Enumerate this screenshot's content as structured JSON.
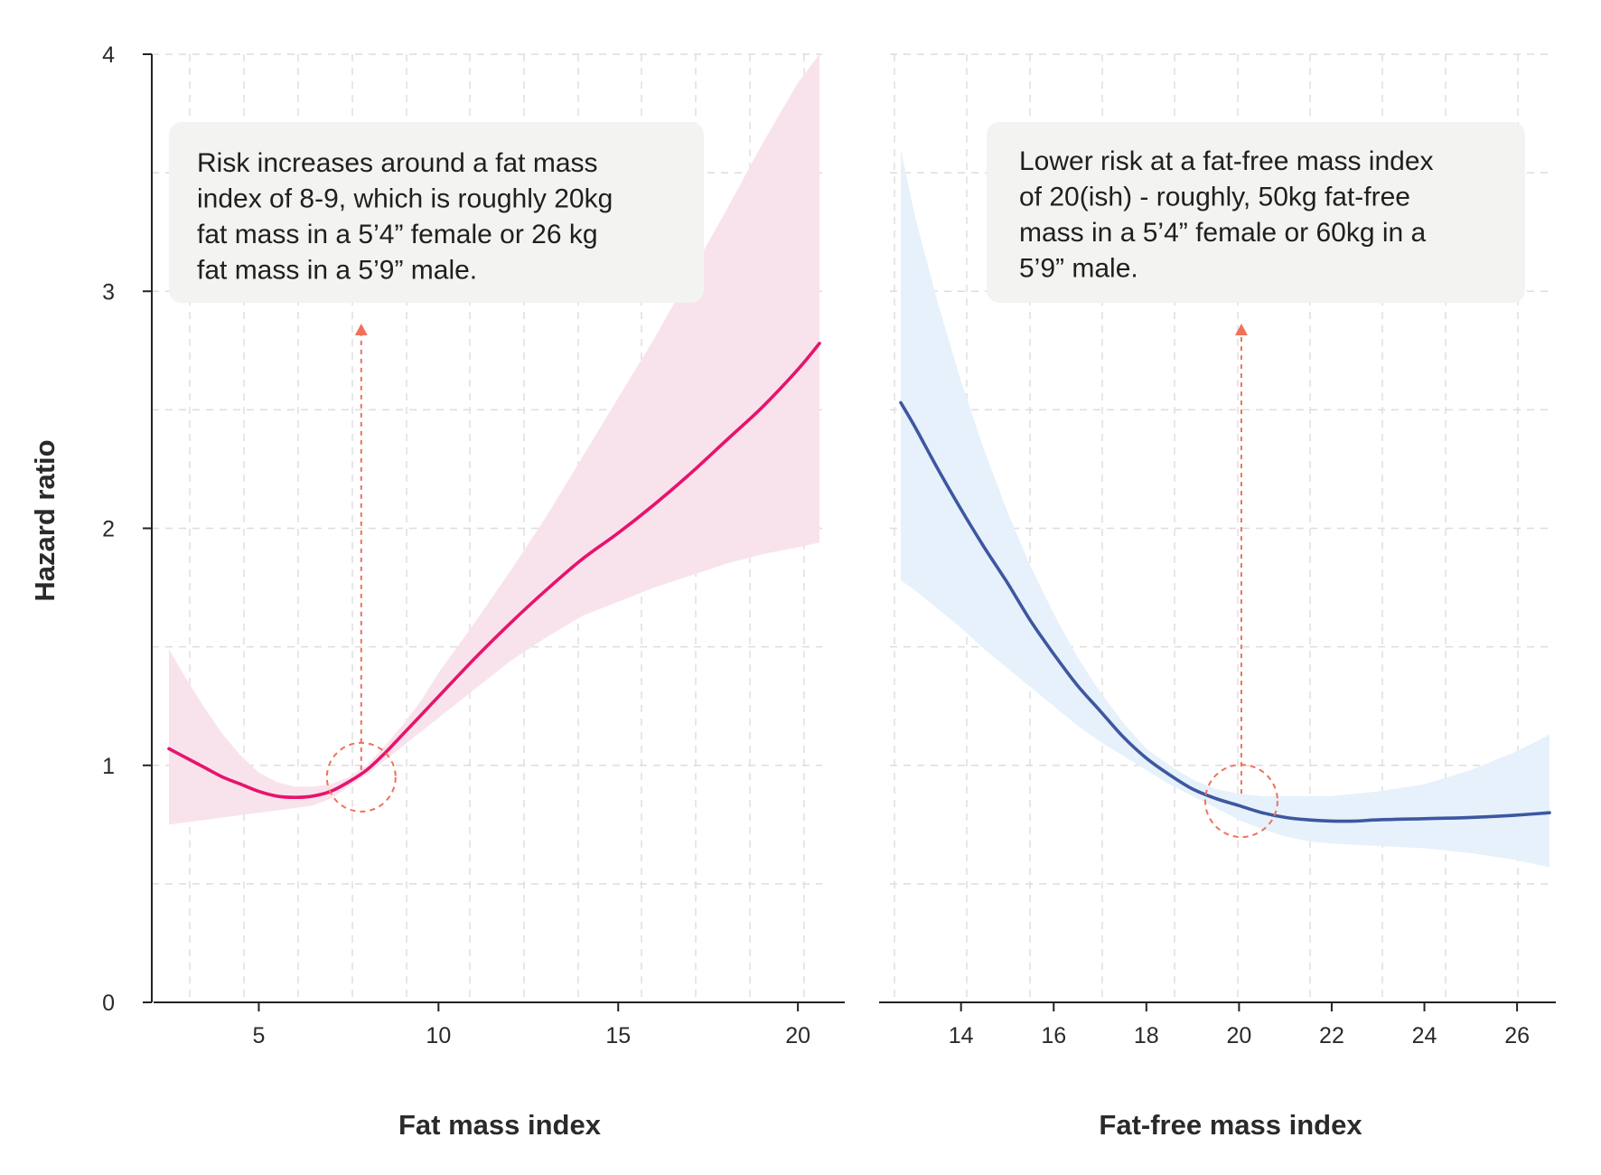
{
  "y_axis_label": "Hazard ratio",
  "colors": {
    "fat_line": "#e8136e",
    "fat_band": "#f8e3ec",
    "fatfree_line": "#3d57a0",
    "fatfree_band": "#e6f1fb",
    "annotation_marker": "#f0715a",
    "annotation_box": "#f3f3f1",
    "grid": "#dddddd",
    "axis": "#222222"
  },
  "chart_data": [
    {
      "type": "line",
      "id": "fat",
      "xlabel": "Fat mass index",
      "ylabel": "Hazard ratio",
      "xlim": [
        2.5,
        20.6
      ],
      "ylim": [
        0,
        4
      ],
      "xticks": [
        5,
        10,
        15,
        20
      ],
      "yticks": [
        0,
        1,
        2,
        3,
        4
      ],
      "grid": true,
      "series": [
        {
          "x": [
            2.5,
            3.0,
            3.5,
            4.0,
            4.5,
            5.0,
            5.5,
            6.0,
            6.5,
            7.0,
            7.5,
            8.0,
            8.5,
            9.0,
            9.5,
            10.0,
            11.0,
            12.0,
            13.0,
            14.0,
            15.0,
            16.0,
            17.0,
            18.0,
            19.0,
            20.0,
            20.6
          ],
          "y": [
            1.07,
            1.03,
            0.99,
            0.95,
            0.92,
            0.89,
            0.87,
            0.865,
            0.87,
            0.89,
            0.93,
            0.98,
            1.05,
            1.13,
            1.21,
            1.29,
            1.45,
            1.6,
            1.74,
            1.87,
            1.98,
            2.1,
            2.23,
            2.37,
            2.51,
            2.67,
            2.78
          ],
          "lower": [
            0.75,
            0.76,
            0.77,
            0.78,
            0.79,
            0.8,
            0.81,
            0.82,
            0.83,
            0.86,
            0.91,
            0.96,
            1.02,
            1.08,
            1.14,
            1.2,
            1.32,
            1.44,
            1.54,
            1.63,
            1.69,
            1.75,
            1.8,
            1.85,
            1.89,
            1.92,
            1.94
          ],
          "upper": [
            1.49,
            1.36,
            1.24,
            1.13,
            1.04,
            0.97,
            0.93,
            0.91,
            0.91,
            0.92,
            0.95,
            1.0,
            1.08,
            1.17,
            1.27,
            1.39,
            1.6,
            1.82,
            2.05,
            2.3,
            2.55,
            2.8,
            3.07,
            3.34,
            3.62,
            3.88,
            4.0
          ]
        }
      ],
      "annotation": {
        "text_lines": [
          "Risk increases around a fat mass",
          "index of 8-9, which is roughly 20kg",
          "fat mass in a 5’4” female or 26 kg",
          "fat mass in a 5’9” male."
        ],
        "point": [
          7.85,
          0.95
        ]
      }
    },
    {
      "type": "line",
      "id": "fatfree",
      "xlabel": "Fat-free mass index",
      "ylabel": "Hazard ratio",
      "xlim": [
        12.7,
        26.7
      ],
      "ylim": [
        0,
        4
      ],
      "xticks": [
        14,
        16,
        18,
        20,
        22,
        24,
        26
      ],
      "yticks": [
        0,
        1,
        2,
        3,
        4
      ],
      "grid": true,
      "series": [
        {
          "x": [
            12.7,
            13.0,
            13.5,
            14.0,
            14.5,
            15.0,
            15.5,
            16.0,
            16.5,
            17.0,
            17.5,
            18.0,
            18.5,
            19.0,
            19.5,
            20.0,
            20.5,
            21.0,
            21.5,
            22.0,
            22.5,
            23.0,
            24.0,
            25.0,
            26.0,
            26.7
          ],
          "y": [
            2.53,
            2.43,
            2.25,
            2.08,
            1.92,
            1.77,
            1.61,
            1.47,
            1.34,
            1.23,
            1.12,
            1.03,
            0.96,
            0.9,
            0.86,
            0.83,
            0.8,
            0.78,
            0.77,
            0.765,
            0.765,
            0.77,
            0.775,
            0.78,
            0.79,
            0.8
          ],
          "lower": [
            1.78,
            1.74,
            1.66,
            1.58,
            1.49,
            1.41,
            1.33,
            1.25,
            1.17,
            1.1,
            1.04,
            0.98,
            0.92,
            0.87,
            0.82,
            0.77,
            0.73,
            0.7,
            0.68,
            0.67,
            0.665,
            0.66,
            0.65,
            0.63,
            0.6,
            0.57
          ],
          "upper": [
            3.6,
            3.32,
            2.95,
            2.62,
            2.33,
            2.07,
            1.84,
            1.64,
            1.46,
            1.31,
            1.18,
            1.07,
            1.0,
            0.94,
            0.9,
            0.88,
            0.87,
            0.87,
            0.87,
            0.87,
            0.88,
            0.89,
            0.92,
            0.98,
            1.06,
            1.13
          ]
        }
      ],
      "annotation": {
        "text_lines": [
          "Lower risk at a fat-free mass index",
          "of 20(ish) - roughly, 50kg fat-free",
          "mass in a 5’4” female or 60kg in a",
          "5’9” male."
        ],
        "point": [
          20.05,
          0.85
        ]
      }
    }
  ]
}
